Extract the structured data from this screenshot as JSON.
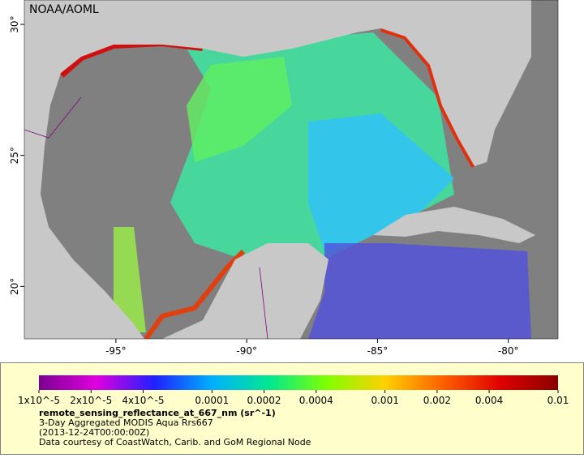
{
  "map": {
    "credit": "NOAA/AOML",
    "xlim": [
      -98.5,
      -78.1
    ],
    "ylim": [
      18,
      30.93
    ],
    "xticks": [
      {
        "value": -95,
        "label": "-95°"
      },
      {
        "value": -90,
        "label": "-90°"
      },
      {
        "value": -85,
        "label": "-85°"
      },
      {
        "value": -80,
        "label": "-80°"
      }
    ],
    "yticks": [
      {
        "value": 20,
        "label": "20°"
      },
      {
        "value": 25,
        "label": "25°"
      },
      {
        "value": 30,
        "label": "30°"
      }
    ]
  },
  "colorbar": {
    "scale": "log",
    "lim": [
      1e-05,
      0.01
    ],
    "colors": [
      "#7a0090",
      "#e000e0",
      "#2020ff",
      "#00b0ff",
      "#00e890",
      "#80ff00",
      "#ffd000",
      "#ff6000",
      "#e00000",
      "#8a0000"
    ],
    "ticks": [
      {
        "value": 1e-05,
        "label": "1x10^-5"
      },
      {
        "value": 2e-05,
        "label": "2x10^-5"
      },
      {
        "value": 4e-05,
        "label": "4x10^-5"
      },
      0.0001,
      0.0002,
      0.0004,
      0.001,
      0.002,
      0.004,
      0.01
    ]
  },
  "caption": {
    "title": "remote_sensing_reflectance_at_667_nm (sr^-1)",
    "line1": "3-Day Aggregated MODIS Aqua Rrs667",
    "line2": "(2013-12-24T00:00:00Z)",
    "line3": "Data courtesy of CoastWatch, Carib. and GoM Regional Node"
  }
}
